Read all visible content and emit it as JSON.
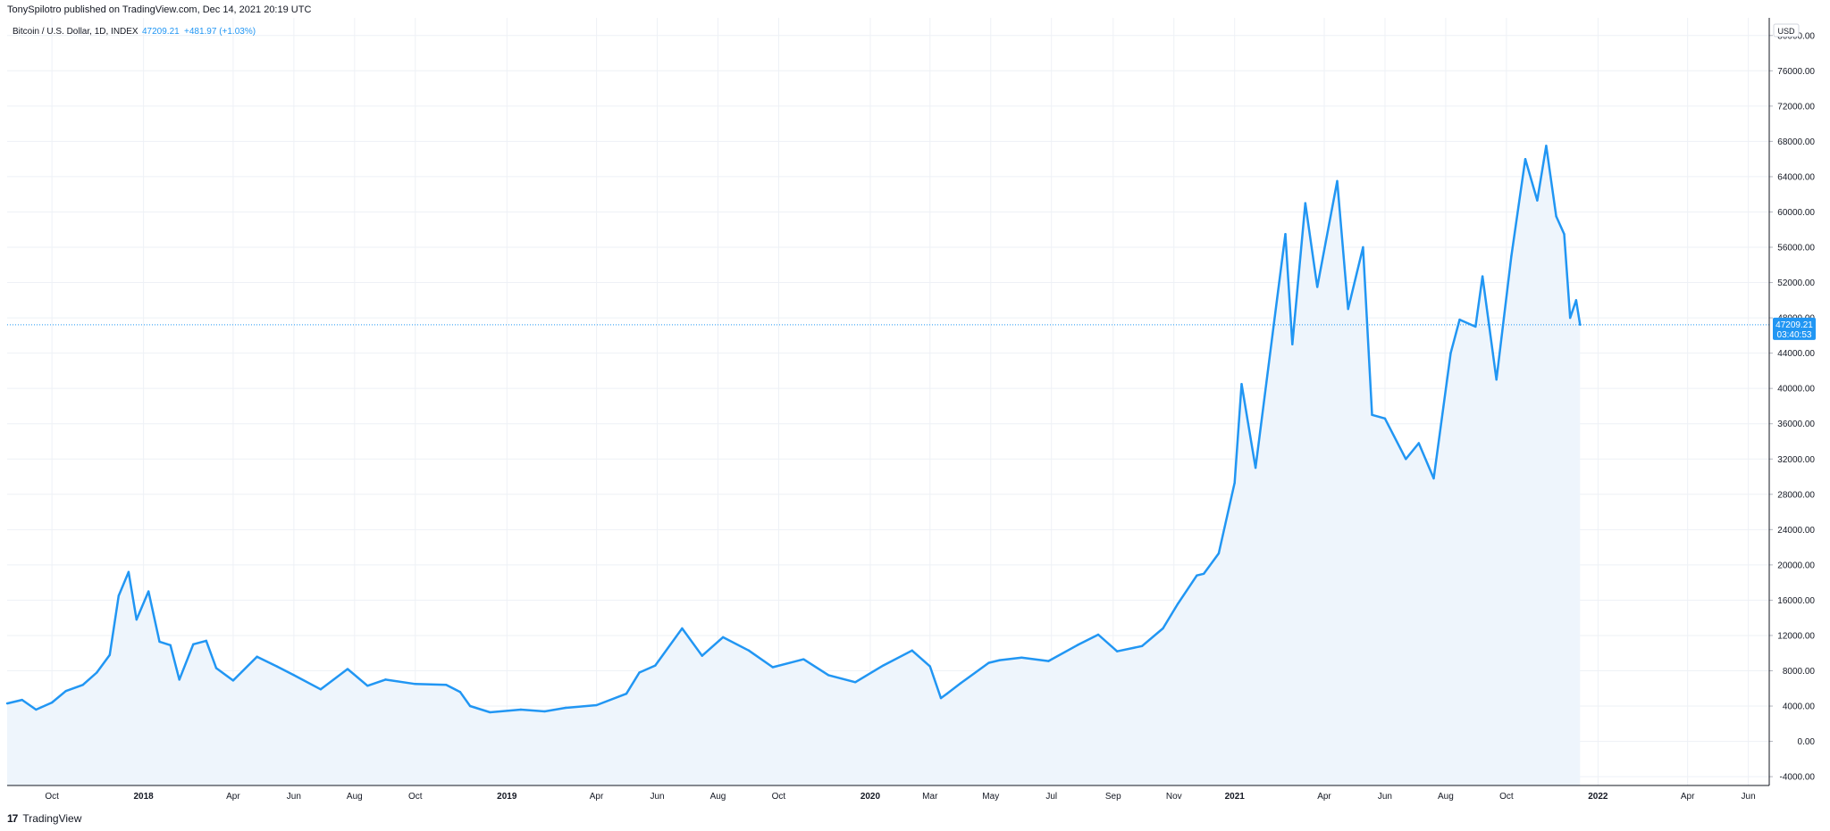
{
  "header": {
    "published_line": "TonySpilotro published on TradingView.com, Dec 14, 2021 20:19 UTC"
  },
  "legend": {
    "symbol": "Bitcoin / U.S. Dollar, 1D, INDEX",
    "last": "47209.21",
    "change": "+481.97 (+1.03%)"
  },
  "price_label": {
    "price": "47209.21",
    "countdown": "03:40:53"
  },
  "currency": "USD",
  "footer": {
    "logo": "17",
    "brand": "TradingView"
  },
  "colors": {
    "line": "#2196f3",
    "fill": "#eef5fc",
    "grid": "#eef1f6",
    "text": "#131722",
    "price_label_bg": "#2196f3"
  },
  "chart_data": {
    "type": "area",
    "xlabel": "",
    "ylabel": "",
    "ylim": [
      -5000,
      82000
    ],
    "grid": true,
    "y_ticks": [
      -4000,
      0,
      4000,
      8000,
      12000,
      16000,
      20000,
      24000,
      28000,
      32000,
      36000,
      40000,
      44000,
      48000,
      52000,
      56000,
      60000,
      64000,
      68000,
      72000,
      76000,
      80000
    ],
    "y_tick_labels": [
      "-4000.00",
      "0.00",
      "4000.00",
      "8000.00",
      "12000.00",
      "16000.00",
      "20000.00",
      "24000.00",
      "28000.00",
      "32000.00",
      "36000.00",
      "40000.00",
      "44000.00",
      "48000.00",
      "52000.00",
      "56000.00",
      "60000.00",
      "64000.00",
      "68000.00",
      "72000.00",
      "76000.00",
      "80000.00"
    ],
    "x_ticks": [
      {
        "date": "2017-10-01",
        "label": "Oct",
        "major": false
      },
      {
        "date": "2018-01-01",
        "label": "2018",
        "major": true
      },
      {
        "date": "2018-04-01",
        "label": "Apr",
        "major": false
      },
      {
        "date": "2018-06-01",
        "label": "Jun",
        "major": false
      },
      {
        "date": "2018-08-01",
        "label": "Aug",
        "major": false
      },
      {
        "date": "2018-10-01",
        "label": "Oct",
        "major": false
      },
      {
        "date": "2019-01-01",
        "label": "2019",
        "major": true
      },
      {
        "date": "2019-04-01",
        "label": "Apr",
        "major": false
      },
      {
        "date": "2019-06-01",
        "label": "Jun",
        "major": false
      },
      {
        "date": "2019-08-01",
        "label": "Aug",
        "major": false
      },
      {
        "date": "2019-10-01",
        "label": "Oct",
        "major": false
      },
      {
        "date": "2020-01-01",
        "label": "2020",
        "major": true
      },
      {
        "date": "2020-03-01",
        "label": "Mar",
        "major": false
      },
      {
        "date": "2020-05-01",
        "label": "May",
        "major": false
      },
      {
        "date": "2020-07-01",
        "label": "Jul",
        "major": false
      },
      {
        "date": "2020-09-01",
        "label": "Sep",
        "major": false
      },
      {
        "date": "2020-11-01",
        "label": "Nov",
        "major": false
      },
      {
        "date": "2021-01-01",
        "label": "2021",
        "major": true
      },
      {
        "date": "2021-04-01",
        "label": "Apr",
        "major": false
      },
      {
        "date": "2021-06-01",
        "label": "Jun",
        "major": false
      },
      {
        "date": "2021-08-01",
        "label": "Aug",
        "major": false
      },
      {
        "date": "2021-10-01",
        "label": "Oct",
        "major": false
      },
      {
        "date": "2022-01-01",
        "label": "2022",
        "major": true
      },
      {
        "date": "2022-04-01",
        "label": "Apr",
        "major": false
      },
      {
        "date": "2022-06-01",
        "label": "Jun",
        "major": false
      }
    ],
    "xlim": [
      "2017-08-17",
      "2022-06-22"
    ],
    "series": [
      {
        "name": "Bitcoin / U.S. Dollar",
        "x": [
          "2017-08-17",
          "2017-09-01",
          "2017-09-15",
          "2017-10-01",
          "2017-10-15",
          "2017-11-01",
          "2017-11-15",
          "2017-11-28",
          "2017-12-07",
          "2017-12-17",
          "2017-12-25",
          "2018-01-06",
          "2018-01-17",
          "2018-01-28",
          "2018-02-06",
          "2018-02-20",
          "2018-03-05",
          "2018-03-15",
          "2018-04-01",
          "2018-04-25",
          "2018-05-15",
          "2018-06-01",
          "2018-06-28",
          "2018-07-25",
          "2018-08-14",
          "2018-09-01",
          "2018-10-01",
          "2018-11-01",
          "2018-11-15",
          "2018-11-25",
          "2018-12-15",
          "2019-01-15",
          "2019-02-08",
          "2019-03-01",
          "2019-04-01",
          "2019-05-01",
          "2019-05-14",
          "2019-05-30",
          "2019-06-26",
          "2019-07-16",
          "2019-08-06",
          "2019-09-01",
          "2019-09-25",
          "2019-10-26",
          "2019-11-20",
          "2019-12-17",
          "2020-01-14",
          "2020-02-12",
          "2020-03-01",
          "2020-03-12",
          "2020-03-18",
          "2020-04-01",
          "2020-04-29",
          "2020-05-10",
          "2020-06-01",
          "2020-06-28",
          "2020-07-27",
          "2020-08-17",
          "2020-09-05",
          "2020-09-30",
          "2020-10-21",
          "2020-11-05",
          "2020-11-24",
          "2020-12-01",
          "2020-12-16",
          "2021-01-01",
          "2021-01-08",
          "2021-01-22",
          "2021-02-08",
          "2021-02-21",
          "2021-02-28",
          "2021-03-13",
          "2021-03-25",
          "2021-04-14",
          "2021-04-25",
          "2021-05-10",
          "2021-05-19",
          "2021-06-01",
          "2021-06-22",
          "2021-07-05",
          "2021-07-20",
          "2021-08-06",
          "2021-08-15",
          "2021-08-31",
          "2021-09-07",
          "2021-09-21",
          "2021-10-06",
          "2021-10-20",
          "2021-11-01",
          "2021-11-10",
          "2021-11-20",
          "2021-11-28",
          "2021-12-04",
          "2021-12-10",
          "2021-12-14"
        ],
        "y": [
          4300,
          4700,
          3600,
          4400,
          5700,
          6400,
          7800,
          9800,
          16500,
          19200,
          13800,
          17000,
          11300,
          10900,
          7000,
          11000,
          11400,
          8300,
          6900,
          9600,
          8500,
          7500,
          5900,
          8200,
          6300,
          7000,
          6500,
          6400,
          5600,
          4000,
          3300,
          3600,
          3400,
          3800,
          4100,
          5400,
          7800,
          8600,
          12800,
          9700,
          11800,
          10300,
          8400,
          9300,
          7500,
          6700,
          8600,
          10300,
          8500,
          4900,
          5400,
          6600,
          8900,
          9200,
          9500,
          9100,
          10900,
          12100,
          10200,
          10800,
          12800,
          15600,
          18800,
          19000,
          21300,
          29300,
          40500,
          31000,
          46100,
          57500,
          45000,
          61000,
          51500,
          63500,
          49000,
          56000,
          37000,
          36600,
          32000,
          33800,
          29800,
          44000,
          47800,
          47000,
          52700,
          41000,
          55000,
          66000,
          61300,
          67500,
          59500,
          57500,
          48000,
          50000,
          47209
        ]
      }
    ]
  }
}
